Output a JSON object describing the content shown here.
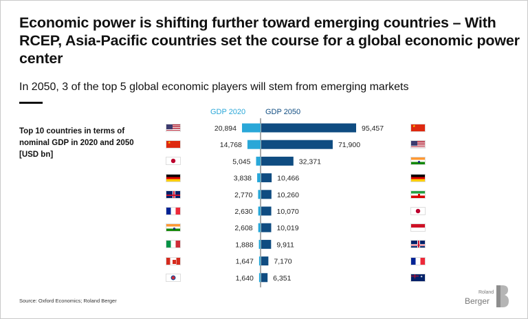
{
  "title": "Economic power is shifting further toward emerging countries – With RCEP, Asia-Pacific countries set the course for a global economic power center",
  "subtitle": "In 2050, 3 of the top 5 global economic players will stem from emerging markets",
  "description": "Top 10 countries in terms of nominal GDP in 2020 and 2050 [USD bn]",
  "source": "Source: Oxford Economics; Roland Berger",
  "logo": {
    "small": "Roland",
    "big": "Berger"
  },
  "colors": {
    "gdp2020": "#29a7d8",
    "gdp2050": "#0f4c81",
    "text": "#111111"
  },
  "chart_data": {
    "type": "bar",
    "title": "Top 10 countries in terms of nominal GDP in 2020 and 2050 [USD bn]",
    "series": [
      {
        "name": "GDP 2020",
        "countries": [
          "United States",
          "China",
          "Japan",
          "Germany",
          "United Kingdom",
          "France",
          "India",
          "Italy",
          "Canada",
          "South Korea"
        ],
        "flags": [
          "us",
          "cn",
          "jp",
          "de",
          "gb",
          "fr",
          "in",
          "it",
          "ca",
          "kr"
        ],
        "values": [
          20894,
          14768,
          5045,
          3838,
          2770,
          2630,
          2608,
          1888,
          1647,
          1640
        ],
        "labels": [
          "20,894",
          "14,768",
          "5,045",
          "3,838",
          "2,770",
          "2,630",
          "2,608",
          "1,888",
          "1,647",
          "1,640"
        ]
      },
      {
        "name": "GDP 2050",
        "countries": [
          "China",
          "United States",
          "India",
          "Germany",
          "Iran",
          "Japan",
          "Indonesia",
          "United Kingdom",
          "France",
          "Australia"
        ],
        "flags": [
          "cn",
          "us",
          "in",
          "de",
          "ir",
          "jp",
          "id",
          "gb",
          "fr",
          "au"
        ],
        "values": [
          95457,
          71900,
          32371,
          10466,
          10260,
          10070,
          10019,
          9911,
          7170,
          6351
        ],
        "labels": [
          "95,457",
          "71,900",
          "32,371",
          "10,466",
          "10,260",
          "10,070",
          "10,019",
          "9,911",
          "7,170",
          "6,351"
        ]
      }
    ],
    "legend": [
      "GDP 2020",
      "GDP 2050"
    ],
    "xlabel": "",
    "ylabel": ""
  }
}
